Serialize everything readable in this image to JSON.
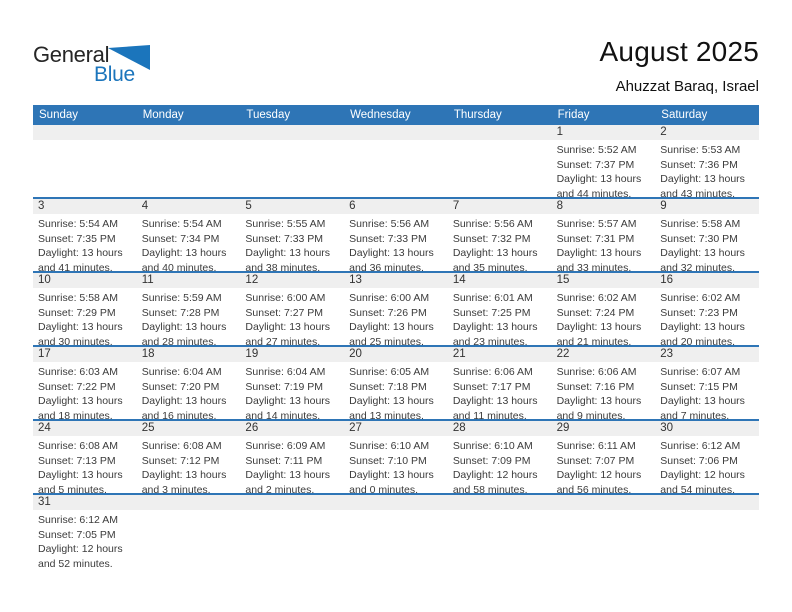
{
  "logo": {
    "part1": "General",
    "part2": "Blue"
  },
  "header": {
    "title": "August 2025",
    "subtitle": "Ahuzzat Baraq, Israel"
  },
  "colors": {
    "header_blue": "#2E75B6",
    "row_line_blue": "#2E75B6",
    "strip_gray": "#EFEFEF",
    "logo_blue": "#1B75BC"
  },
  "calendar": {
    "weekdays": [
      "Sunday",
      "Monday",
      "Tuesday",
      "Wednesday",
      "Thursday",
      "Friday",
      "Saturday"
    ],
    "weeks": [
      [
        null,
        null,
        null,
        null,
        null,
        {
          "day": "1",
          "sunrise": "Sunrise: 5:52 AM",
          "sunset": "Sunset: 7:37 PM",
          "daylight_line1": "Daylight: 13 hours",
          "daylight_line2": "and 44 minutes."
        },
        {
          "day": "2",
          "sunrise": "Sunrise: 5:53 AM",
          "sunset": "Sunset: 7:36 PM",
          "daylight_line1": "Daylight: 13 hours",
          "daylight_line2": "and 43 minutes."
        }
      ],
      [
        {
          "day": "3",
          "sunrise": "Sunrise: 5:54 AM",
          "sunset": "Sunset: 7:35 PM",
          "daylight_line1": "Daylight: 13 hours",
          "daylight_line2": "and 41 minutes."
        },
        {
          "day": "4",
          "sunrise": "Sunrise: 5:54 AM",
          "sunset": "Sunset: 7:34 PM",
          "daylight_line1": "Daylight: 13 hours",
          "daylight_line2": "and 40 minutes."
        },
        {
          "day": "5",
          "sunrise": "Sunrise: 5:55 AM",
          "sunset": "Sunset: 7:33 PM",
          "daylight_line1": "Daylight: 13 hours",
          "daylight_line2": "and 38 minutes."
        },
        {
          "day": "6",
          "sunrise": "Sunrise: 5:56 AM",
          "sunset": "Sunset: 7:33 PM",
          "daylight_line1": "Daylight: 13 hours",
          "daylight_line2": "and 36 minutes."
        },
        {
          "day": "7",
          "sunrise": "Sunrise: 5:56 AM",
          "sunset": "Sunset: 7:32 PM",
          "daylight_line1": "Daylight: 13 hours",
          "daylight_line2": "and 35 minutes."
        },
        {
          "day": "8",
          "sunrise": "Sunrise: 5:57 AM",
          "sunset": "Sunset: 7:31 PM",
          "daylight_line1": "Daylight: 13 hours",
          "daylight_line2": "and 33 minutes."
        },
        {
          "day": "9",
          "sunrise": "Sunrise: 5:58 AM",
          "sunset": "Sunset: 7:30 PM",
          "daylight_line1": "Daylight: 13 hours",
          "daylight_line2": "and 32 minutes."
        }
      ],
      [
        {
          "day": "10",
          "sunrise": "Sunrise: 5:58 AM",
          "sunset": "Sunset: 7:29 PM",
          "daylight_line1": "Daylight: 13 hours",
          "daylight_line2": "and 30 minutes."
        },
        {
          "day": "11",
          "sunrise": "Sunrise: 5:59 AM",
          "sunset": "Sunset: 7:28 PM",
          "daylight_line1": "Daylight: 13 hours",
          "daylight_line2": "and 28 minutes."
        },
        {
          "day": "12",
          "sunrise": "Sunrise: 6:00 AM",
          "sunset": "Sunset: 7:27 PM",
          "daylight_line1": "Daylight: 13 hours",
          "daylight_line2": "and 27 minutes."
        },
        {
          "day": "13",
          "sunrise": "Sunrise: 6:00 AM",
          "sunset": "Sunset: 7:26 PM",
          "daylight_line1": "Daylight: 13 hours",
          "daylight_line2": "and 25 minutes."
        },
        {
          "day": "14",
          "sunrise": "Sunrise: 6:01 AM",
          "sunset": "Sunset: 7:25 PM",
          "daylight_line1": "Daylight: 13 hours",
          "daylight_line2": "and 23 minutes."
        },
        {
          "day": "15",
          "sunrise": "Sunrise: 6:02 AM",
          "sunset": "Sunset: 7:24 PM",
          "daylight_line1": "Daylight: 13 hours",
          "daylight_line2": "and 21 minutes."
        },
        {
          "day": "16",
          "sunrise": "Sunrise: 6:02 AM",
          "sunset": "Sunset: 7:23 PM",
          "daylight_line1": "Daylight: 13 hours",
          "daylight_line2": "and 20 minutes."
        }
      ],
      [
        {
          "day": "17",
          "sunrise": "Sunrise: 6:03 AM",
          "sunset": "Sunset: 7:22 PM",
          "daylight_line1": "Daylight: 13 hours",
          "daylight_line2": "and 18 minutes."
        },
        {
          "day": "18",
          "sunrise": "Sunrise: 6:04 AM",
          "sunset": "Sunset: 7:20 PM",
          "daylight_line1": "Daylight: 13 hours",
          "daylight_line2": "and 16 minutes."
        },
        {
          "day": "19",
          "sunrise": "Sunrise: 6:04 AM",
          "sunset": "Sunset: 7:19 PM",
          "daylight_line1": "Daylight: 13 hours",
          "daylight_line2": "and 14 minutes."
        },
        {
          "day": "20",
          "sunrise": "Sunrise: 6:05 AM",
          "sunset": "Sunset: 7:18 PM",
          "daylight_line1": "Daylight: 13 hours",
          "daylight_line2": "and 13 minutes."
        },
        {
          "day": "21",
          "sunrise": "Sunrise: 6:06 AM",
          "sunset": "Sunset: 7:17 PM",
          "daylight_line1": "Daylight: 13 hours",
          "daylight_line2": "and 11 minutes."
        },
        {
          "day": "22",
          "sunrise": "Sunrise: 6:06 AM",
          "sunset": "Sunset: 7:16 PM",
          "daylight_line1": "Daylight: 13 hours",
          "daylight_line2": "and 9 minutes."
        },
        {
          "day": "23",
          "sunrise": "Sunrise: 6:07 AM",
          "sunset": "Sunset: 7:15 PM",
          "daylight_line1": "Daylight: 13 hours",
          "daylight_line2": "and 7 minutes."
        }
      ],
      [
        {
          "day": "24",
          "sunrise": "Sunrise: 6:08 AM",
          "sunset": "Sunset: 7:13 PM",
          "daylight_line1": "Daylight: 13 hours",
          "daylight_line2": "and 5 minutes."
        },
        {
          "day": "25",
          "sunrise": "Sunrise: 6:08 AM",
          "sunset": "Sunset: 7:12 PM",
          "daylight_line1": "Daylight: 13 hours",
          "daylight_line2": "and 3 minutes."
        },
        {
          "day": "26",
          "sunrise": "Sunrise: 6:09 AM",
          "sunset": "Sunset: 7:11 PM",
          "daylight_line1": "Daylight: 13 hours",
          "daylight_line2": "and 2 minutes."
        },
        {
          "day": "27",
          "sunrise": "Sunrise: 6:10 AM",
          "sunset": "Sunset: 7:10 PM",
          "daylight_line1": "Daylight: 13 hours",
          "daylight_line2": "and 0 minutes."
        },
        {
          "day": "28",
          "sunrise": "Sunrise: 6:10 AM",
          "sunset": "Sunset: 7:09 PM",
          "daylight_line1": "Daylight: 12 hours",
          "daylight_line2": "and 58 minutes."
        },
        {
          "day": "29",
          "sunrise": "Sunrise: 6:11 AM",
          "sunset": "Sunset: 7:07 PM",
          "daylight_line1": "Daylight: 12 hours",
          "daylight_line2": "and 56 minutes."
        },
        {
          "day": "30",
          "sunrise": "Sunrise: 6:12 AM",
          "sunset": "Sunset: 7:06 PM",
          "daylight_line1": "Daylight: 12 hours",
          "daylight_line2": "and 54 minutes."
        }
      ],
      [
        {
          "day": "31",
          "sunrise": "Sunrise: 6:12 AM",
          "sunset": "Sunset: 7:05 PM",
          "daylight_line1": "Daylight: 12 hours",
          "daylight_line2": "and 52 minutes."
        },
        null,
        null,
        null,
        null,
        null,
        null
      ]
    ]
  }
}
